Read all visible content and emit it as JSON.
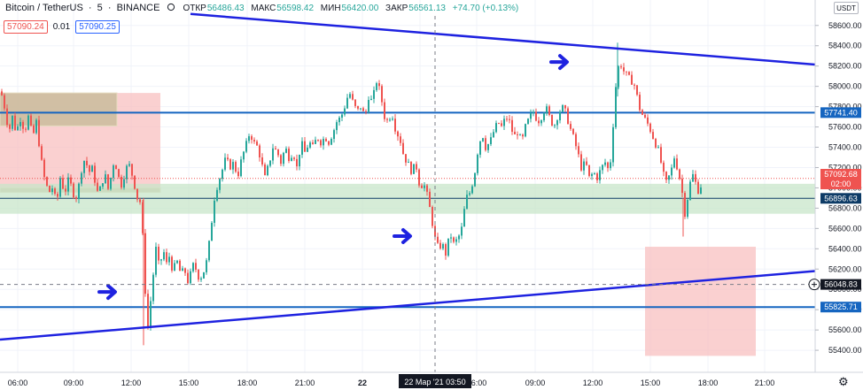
{
  "header": {
    "symbol": "Bitcoin / TetherUS",
    "interval": "5",
    "exchange": "BINANCE",
    "ohlc": [
      {
        "label": "ОТКР",
        "value": "56486.43"
      },
      {
        "label": "МАКС",
        "value": "56598.42"
      },
      {
        "label": "МИН",
        "value": "56420.00"
      },
      {
        "label": "ЗАКР",
        "value": "56561.13"
      },
      {
        "label": "",
        "value": "+74.70 (+0.13%)"
      }
    ],
    "sell_price": "57090.24",
    "spread": "0.01",
    "buy_price": "57090.25",
    "currency_button": "USDT"
  },
  "colors": {
    "up": "#26a69a",
    "down": "#ef5350",
    "trendline": "#1e22e0",
    "hline": "#1565c0",
    "zone_red": "#f8bcbc",
    "zone_green": "#c8e6c9",
    "zone_olive": "#c9bc9c",
    "arrow": "#1e22e0"
  },
  "chart_data": {
    "type": "candlestick",
    "y_axis": {
      "range": [
        55270,
        58720
      ],
      "ticks": [
        "58600.00",
        "58400.00",
        "58200.00",
        "58000.00",
        "57800.00",
        "57600.00",
        "57400.00",
        "57200.00",
        "57000.00",
        "56800.00",
        "56600.00",
        "56400.00",
        "56200.00",
        "56000.00",
        "55800.00",
        "55600.00",
        "55400.00"
      ]
    },
    "x_axis": {
      "ticks": [
        "06:00",
        "09:00",
        "12:00",
        "15:00",
        "18:00",
        "21:00",
        "22",
        "03:00",
        "06:00",
        "09:00",
        "12:00",
        "15:00",
        "18:00",
        "21:00"
      ],
      "crosshair_label": "22 Мар '21  03:50"
    },
    "price_labels": [
      {
        "text": "57741.40",
        "value": 57741.4,
        "style": "hline"
      },
      {
        "text": "57092.68",
        "value": 57092.68,
        "style": "current"
      },
      {
        "text": "02:00",
        "value": 57000,
        "style": "countdown"
      },
      {
        "text": "56896.63",
        "value": 56896.63,
        "style": "dark"
      },
      {
        "text": "56048.83",
        "value": 56048.83,
        "style": "crosshair"
      },
      {
        "text": "55825.71",
        "value": 55825.71,
        "style": "hline"
      }
    ],
    "horizontal_lines": [
      57741.4,
      56896.63,
      55825.71
    ],
    "crosshair": {
      "price": 56048.83,
      "time": "22 Мар '21  03:50"
    },
    "path": [
      [
        0,
        57950
      ],
      [
        4,
        57800
      ],
      [
        9,
        57550
      ],
      [
        13,
        57700
      ],
      [
        17,
        57550
      ],
      [
        22,
        57680
      ],
      [
        27,
        57560
      ],
      [
        31,
        57700
      ],
      [
        36,
        57500
      ],
      [
        40,
        57650
      ],
      [
        45,
        57300
      ],
      [
        49,
        57100
      ],
      [
        54,
        56950
      ],
      [
        58,
        57000
      ],
      [
        63,
        56850
      ],
      [
        67,
        57100
      ],
      [
        72,
        56950
      ],
      [
        77,
        57100
      ],
      [
        81,
        56950
      ],
      [
        86,
        56900
      ],
      [
        90,
        57150
      ],
      [
        95,
        57300
      ],
      [
        99,
        57150
      ],
      [
        104,
        57200
      ],
      [
        108,
        56950
      ],
      [
        113,
        57000
      ],
      [
        117,
        57150
      ],
      [
        122,
        56950
      ],
      [
        126,
        57250
      ],
      [
        131,
        57200
      ],
      [
        135,
        57000
      ],
      [
        140,
        57150
      ],
      [
        144,
        57250
      ],
      [
        149,
        57100
      ],
      [
        154,
        56900
      ],
      [
        158,
        56850
      ],
      [
        162,
        56200
      ],
      [
        165,
        55550
      ],
      [
        168,
        55800
      ],
      [
        172,
        56150
      ],
      [
        175,
        56400
      ],
      [
        179,
        56200
      ],
      [
        183,
        56400
      ],
      [
        187,
        56250
      ],
      [
        191,
        56350
      ],
      [
        194,
        56150
      ],
      [
        198,
        56300
      ],
      [
        203,
        56150
      ],
      [
        207,
        56200
      ],
      [
        212,
        56050
      ],
      [
        216,
        56250
      ],
      [
        220,
        56200
      ],
      [
        224,
        56100
      ],
      [
        228,
        56150
      ],
      [
        233,
        56300
      ],
      [
        237,
        56600
      ],
      [
        241,
        56900
      ],
      [
        245,
        57050
      ],
      [
        249,
        57150
      ],
      [
        254,
        57300
      ],
      [
        258,
        57200
      ],
      [
        263,
        57250
      ],
      [
        267,
        57100
      ],
      [
        272,
        57300
      ],
      [
        276,
        57400
      ],
      [
        281,
        57550
      ],
      [
        285,
        57450
      ],
      [
        290,
        57400
      ],
      [
        294,
        57250
      ],
      [
        298,
        57100
      ],
      [
        303,
        57250
      ],
      [
        307,
        57400
      ],
      [
        312,
        57350
      ],
      [
        316,
        57250
      ],
      [
        321,
        57400
      ],
      [
        325,
        57300
      ],
      [
        330,
        57350
      ],
      [
        334,
        57200
      ],
      [
        339,
        57450
      ],
      [
        343,
        57350
      ],
      [
        348,
        57450
      ],
      [
        352,
        57400
      ],
      [
        357,
        57500
      ],
      [
        361,
        57450
      ],
      [
        366,
        57500
      ],
      [
        370,
        57450
      ],
      [
        375,
        57550
      ],
      [
        379,
        57650
      ],
      [
        384,
        57700
      ],
      [
        388,
        57800
      ],
      [
        393,
        57950
      ],
      [
        397,
        57850
      ],
      [
        402,
        57750
      ],
      [
        406,
        57800
      ],
      [
        411,
        57700
      ],
      [
        415,
        57900
      ],
      [
        419,
        57850
      ],
      [
        424,
        58050
      ],
      [
        428,
        57950
      ],
      [
        433,
        57700
      ],
      [
        437,
        57650
      ],
      [
        441,
        57750
      ],
      [
        446,
        57550
      ],
      [
        450,
        57500
      ],
      [
        455,
        57300
      ],
      [
        459,
        57250
      ],
      [
        464,
        57150
      ],
      [
        468,
        57250
      ],
      [
        473,
        57000
      ],
      [
        477,
        57050
      ],
      [
        482,
        56900
      ],
      [
        486,
        56700
      ],
      [
        490,
        56500
      ],
      [
        494,
        56400
      ],
      [
        498,
        56450
      ],
      [
        502,
        56350
      ],
      [
        507,
        56550
      ],
      [
        511,
        56450
      ],
      [
        516,
        56500
      ],
      [
        520,
        56600
      ],
      [
        525,
        56900
      ],
      [
        529,
        56950
      ],
      [
        534,
        57100
      ],
      [
        538,
        57350
      ],
      [
        543,
        57550
      ],
      [
        547,
        57400
      ],
      [
        552,
        57450
      ],
      [
        556,
        57550
      ],
      [
        561,
        57650
      ],
      [
        565,
        57600
      ],
      [
        570,
        57700
      ],
      [
        574,
        57650
      ],
      [
        579,
        57500
      ],
      [
        583,
        57550
      ],
      [
        588,
        57450
      ],
      [
        592,
        57600
      ],
      [
        597,
        57700
      ],
      [
        601,
        57750
      ],
      [
        606,
        57650
      ],
      [
        610,
        57700
      ],
      [
        615,
        57800
      ],
      [
        619,
        57700
      ],
      [
        624,
        57600
      ],
      [
        628,
        57700
      ],
      [
        633,
        57800
      ],
      [
        637,
        57750
      ],
      [
        642,
        57600
      ],
      [
        646,
        57500
      ],
      [
        651,
        57350
      ],
      [
        655,
        57200
      ],
      [
        660,
        57250
      ],
      [
        664,
        57100
      ],
      [
        669,
        57150
      ],
      [
        673,
        57100
      ],
      [
        678,
        57200
      ],
      [
        682,
        57250
      ],
      [
        687,
        57150
      ],
      [
        690,
        57500
      ],
      [
        694,
        58000
      ],
      [
        698,
        58250
      ],
      [
        703,
        58150
      ],
      [
        707,
        58100
      ],
      [
        712,
        58050
      ],
      [
        716,
        58000
      ],
      [
        720,
        57800
      ],
      [
        725,
        57700
      ],
      [
        729,
        57650
      ],
      [
        734,
        57550
      ],
      [
        738,
        57450
      ],
      [
        743,
        57350
      ],
      [
        747,
        57150
      ],
      [
        751,
        57050
      ],
      [
        756,
        57150
      ],
      [
        760,
        57300
      ],
      [
        765,
        57150
      ],
      [
        769,
        56950
      ],
      [
        772,
        56750
      ],
      [
        776,
        56950
      ],
      [
        780,
        57150
      ],
      [
        784,
        57050
      ],
      [
        788,
        56950
      ],
      [
        792,
        57092
      ]
    ]
  },
  "annotations": {
    "trendlines": [
      {
        "from": [
          215,
          58713
        ],
        "to": [
          920,
          58215
        ]
      },
      {
        "from": [
          0,
          55505
        ],
        "to": [
          920,
          56180
        ]
      }
    ],
    "rectangles": [
      {
        "kind": "red",
        "t0": 0,
        "t1": 181,
        "p_top": 57935,
        "p_bottom": 56960
      },
      {
        "kind": "olive",
        "t0": 0,
        "t1": 132,
        "p_top": 57935,
        "p_bottom": 57610
      },
      {
        "kind": "olive",
        "t0": 0,
        "t1": 181,
        "p_top": 57000,
        "p_bottom": 56955
      },
      {
        "kind": "green",
        "t0": 0,
        "t1": 920,
        "p_top": 57040,
        "p_bottom": 56745
      },
      {
        "kind": "red",
        "t0": 728,
        "t1": 853,
        "p_top": 56420,
        "p_bottom": 55345
      }
    ],
    "arrows": [
      {
        "t": 120,
        "p": 55975
      },
      {
        "t": 453,
        "p": 56525
      },
      {
        "t": 630,
        "p": 58240
      }
    ]
  }
}
